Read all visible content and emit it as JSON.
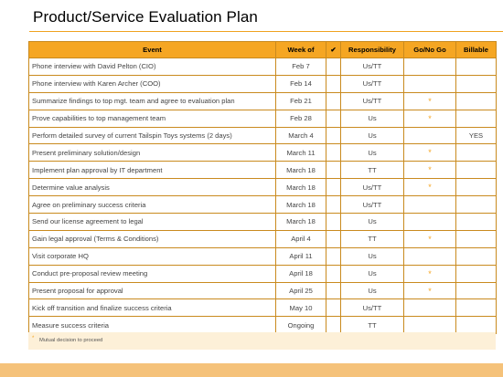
{
  "title": "Product/Service Evaluation Plan",
  "colors": {
    "accent": "#f5a623",
    "band": "#f5c27a",
    "footnote_bg": "#fdf0d8"
  },
  "headers": {
    "event": "Event",
    "week": "Week of",
    "check": "✔",
    "responsibility": "Responsibility",
    "gonogo": "Go/No Go",
    "billable": "Billable"
  },
  "rows": [
    {
      "event": "Phone interview with David Pelton (CIO)",
      "week": "Feb 7",
      "check": "",
      "resp": "Us/TT",
      "gonogo": "",
      "billable": ""
    },
    {
      "event": "Phone interview with Karen Archer (COO)",
      "week": "Feb 14",
      "check": "",
      "resp": "Us/TT",
      "gonogo": "",
      "billable": ""
    },
    {
      "event": "Summarize findings to top mgt. team and agree to evaluation plan",
      "week": "Feb 21",
      "check": "",
      "resp": "Us/TT",
      "gonogo": "*",
      "billable": ""
    },
    {
      "event": "Prove capabilities to top management team",
      "week": "Feb 28",
      "check": "",
      "resp": "Us",
      "gonogo": "*",
      "billable": ""
    },
    {
      "event": "Perform detailed survey of current Tailspin Toys systems (2 days)",
      "week": "March 4",
      "check": "",
      "resp": "Us",
      "gonogo": "",
      "billable": "YES"
    },
    {
      "event": "Present preliminary solution/design",
      "week": "March 11",
      "check": "",
      "resp": "Us",
      "gonogo": "*",
      "billable": ""
    },
    {
      "event": "Implement plan approval by IT department",
      "week": "March 18",
      "check": "",
      "resp": "TT",
      "gonogo": "*",
      "billable": ""
    },
    {
      "event": "Determine value analysis",
      "week": "March 18",
      "check": "",
      "resp": "Us/TT",
      "gonogo": "*",
      "billable": ""
    },
    {
      "event": "Agree on preliminary success criteria",
      "week": "March 18",
      "check": "",
      "resp": "Us/TT",
      "gonogo": "",
      "billable": ""
    },
    {
      "event": "Send our license agreement to legal",
      "week": "March 18",
      "check": "",
      "resp": "Us",
      "gonogo": "",
      "billable": ""
    },
    {
      "event": "Gain legal approval (Terms & Conditions)",
      "week": "April 4",
      "check": "",
      "resp": "TT",
      "gonogo": "*",
      "billable": ""
    },
    {
      "event": "Visit corporate HQ",
      "week": "April 11",
      "check": "",
      "resp": "Us",
      "gonogo": "",
      "billable": ""
    },
    {
      "event": "Conduct pre-proposal review meeting",
      "week": "April 18",
      "check": "",
      "resp": "Us",
      "gonogo": "*",
      "billable": ""
    },
    {
      "event": "Present proposal for approval",
      "week": "April 25",
      "check": "",
      "resp": "Us",
      "gonogo": "*",
      "billable": ""
    },
    {
      "event": "Kick off transition and finalize success criteria",
      "week": "May 10",
      "check": "",
      "resp": "Us/TT",
      "gonogo": "",
      "billable": ""
    },
    {
      "event": "Measure success criteria",
      "week": "Ongoing",
      "check": "",
      "resp": "TT",
      "gonogo": "",
      "billable": ""
    }
  ],
  "footnote": {
    "mark": "*",
    "text": "Mutual decision to proceed"
  }
}
